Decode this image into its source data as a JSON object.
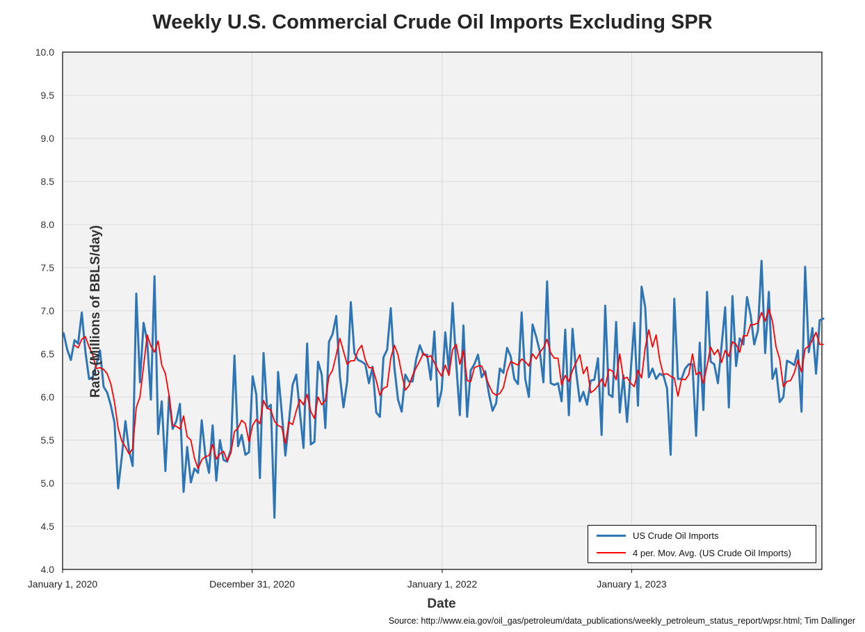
{
  "title": "Weekly U.S. Commercial Crude Oil Imports Excluding SPR",
  "source": "Source: http://www.eia.gov/oil_gas/petroleum/data_publications/weekly_petroleum_status_report/wpsr.html; Tim Dallinger",
  "colors": {
    "series1": "#2E75B6",
    "series2": "#FF0000",
    "plot_bg": "#F2F2F2",
    "grid": "#D9D9D9"
  },
  "chart_data": {
    "type": "line",
    "xlabel": "Date",
    "ylabel": "Rate (Millions of BBLS/day)",
    "ylim": [
      4.0,
      10.0
    ],
    "yticks": [
      "4.0",
      "4.5",
      "5.0",
      "5.5",
      "6.0",
      "6.5",
      "7.0",
      "7.5",
      "8.0",
      "8.5",
      "9.0",
      "9.5",
      "10.0"
    ],
    "xtick_labels": [
      "January 1, 2020",
      "December 31, 2020",
      "January 1, 2022",
      "January 1, 2023"
    ],
    "x_start": "2020-01-03",
    "x_interval": "weekly",
    "grid": true,
    "legend_position": "bottom-right",
    "series": [
      {
        "name": "US Crude Oil Imports",
        "values": [
          6.74,
          6.55,
          6.43,
          6.66,
          6.62,
          6.98,
          6.52,
          6.21,
          6.23,
          6.37,
          6.54,
          6.12,
          6.05,
          5.9,
          5.7,
          4.94,
          5.3,
          5.72,
          5.38,
          5.2,
          7.2,
          6.17,
          6.86,
          6.65,
          5.97,
          7.4,
          5.57,
          5.95,
          5.14,
          6.01,
          5.63,
          5.72,
          5.92,
          4.9,
          5.42,
          5.01,
          5.17,
          5.12,
          5.73,
          5.32,
          5.12,
          5.67,
          5.03,
          5.5,
          5.27,
          5.25,
          5.39,
          6.48,
          5.43,
          5.56,
          5.33,
          5.36,
          6.24,
          6.03,
          5.06,
          6.51,
          5.87,
          5.91,
          4.6,
          6.29,
          5.82,
          5.32,
          5.72,
          6.14,
          6.26,
          5.82,
          5.41,
          6.62,
          5.45,
          5.48,
          6.41,
          6.26,
          5.64,
          6.64,
          6.73,
          6.94,
          6.24,
          5.88,
          6.18,
          7.1,
          6.51,
          6.43,
          6.41,
          6.38,
          6.16,
          6.35,
          5.82,
          5.77,
          6.46,
          6.55,
          7.03,
          6.34,
          5.97,
          5.83,
          6.26,
          6.18,
          6.18,
          6.44,
          6.6,
          6.49,
          6.49,
          6.2,
          6.76,
          5.89,
          6.08,
          6.75,
          6.3,
          7.09,
          6.39,
          5.79,
          6.83,
          5.77,
          6.31,
          6.38,
          6.49,
          6.23,
          6.3,
          6.04,
          5.84,
          5.93,
          6.33,
          6.28,
          6.57,
          6.47,
          6.21,
          6.15,
          6.98,
          6.21,
          6.0,
          6.84,
          6.7,
          6.53,
          6.17,
          7.34,
          6.16,
          6.14,
          6.16,
          5.95,
          6.78,
          5.79,
          6.79,
          6.29,
          5.95,
          6.06,
          5.91,
          6.19,
          6.2,
          6.45,
          5.56,
          7.06,
          6.03,
          6.0,
          6.87,
          5.82,
          6.25,
          5.71,
          6.29,
          6.86,
          5.9,
          7.28,
          7.04,
          6.23,
          6.33,
          6.21,
          6.27,
          6.25,
          6.1,
          5.33,
          7.14,
          6.21,
          6.21,
          6.33,
          6.38,
          6.38,
          5.55,
          6.63,
          5.85,
          7.22,
          6.41,
          6.38,
          6.16,
          6.59,
          7.04,
          5.88,
          7.17,
          6.36,
          6.68,
          6.61,
          7.16,
          6.95,
          6.61,
          6.77,
          7.58,
          6.51,
          7.22,
          6.21,
          6.33,
          5.94,
          6.0,
          6.42,
          6.4,
          6.37,
          6.54,
          5.83,
          7.51,
          6.52,
          6.8,
          6.27,
          6.89,
          6.91
        ]
      },
      {
        "name": "4 per. Mov. Avg. (US Crude Oil Imports)",
        "values": [
          null,
          null,
          null,
          6.6,
          6.57,
          6.67,
          6.7,
          6.58,
          6.49,
          6.33,
          6.34,
          6.32,
          6.27,
          6.15,
          5.94,
          5.64,
          5.49,
          5.42,
          5.34,
          5.4,
          5.88,
          6.0,
          6.36,
          6.72,
          6.59,
          6.52,
          6.65,
          6.37,
          6.27,
          6.02,
          5.67,
          5.66,
          5.63,
          5.78,
          5.54,
          5.5,
          5.29,
          5.17,
          5.27,
          5.31,
          5.32,
          5.45,
          5.28,
          5.34,
          5.37,
          5.26,
          5.35,
          5.6,
          5.64,
          5.73,
          5.69,
          5.48,
          5.67,
          5.74,
          5.69,
          5.96,
          5.87,
          5.85,
          5.72,
          5.67,
          5.65,
          5.46,
          5.71,
          5.68,
          5.84,
          5.97,
          5.91,
          6.03,
          5.83,
          5.75,
          6.0,
          5.91,
          5.96,
          6.24,
          6.31,
          6.49,
          6.68,
          6.53,
          6.38,
          6.42,
          6.42,
          6.54,
          6.6,
          6.43,
          6.34,
          6.34,
          6.19,
          6.02,
          6.1,
          6.12,
          6.45,
          6.6,
          6.49,
          6.27,
          6.08,
          6.13,
          6.25,
          6.34,
          6.42,
          6.51,
          6.46,
          6.48,
          6.4,
          6.31,
          6.24,
          6.37,
          6.25,
          6.55,
          6.61,
          6.38,
          6.54,
          6.19,
          6.18,
          6.34,
          6.36,
          6.36,
          6.25,
          6.14,
          6.05,
          6.02,
          6.04,
          6.11,
          6.3,
          6.41,
          6.39,
          6.37,
          6.44,
          6.41,
          6.36,
          6.5,
          6.44,
          6.52,
          6.57,
          6.67,
          6.51,
          6.45,
          6.45,
          6.14,
          6.25,
          6.18,
          6.31,
          6.4,
          6.49,
          6.27,
          6.35,
          6.05,
          6.08,
          6.13,
          6.21,
          6.12,
          6.32,
          6.3,
          6.2,
          6.5,
          6.21,
          6.23,
          6.16,
          6.12,
          6.31,
          6.22,
          6.57,
          6.78,
          6.58,
          6.72,
          6.43,
          6.26,
          6.27,
          6.24,
          6.22,
          6.01,
          6.21,
          6.2,
          6.26,
          6.5,
          6.26,
          6.29,
          6.16,
          6.36,
          6.58,
          6.49,
          6.55,
          6.4,
          6.54,
          6.47,
          6.64,
          6.61,
          6.52,
          6.71,
          6.71,
          6.84,
          6.84,
          6.86,
          6.98,
          6.88,
          7.02,
          6.88,
          6.58,
          6.44,
          6.12,
          6.18,
          6.19,
          6.28,
          6.43,
          6.29,
          6.56,
          6.59,
          6.66,
          6.75,
          6.61,
          6.61
        ]
      }
    ]
  }
}
